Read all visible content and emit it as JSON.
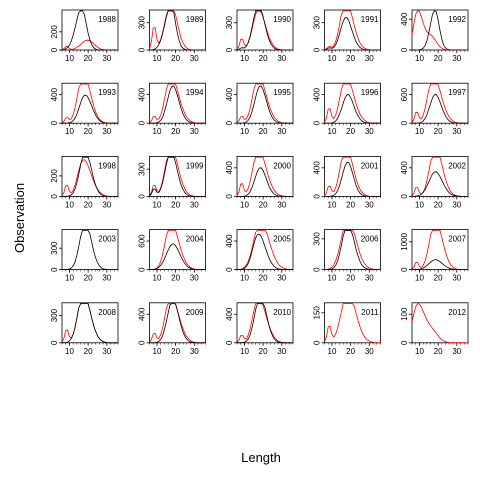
{
  "chart_data": {
    "type": "line",
    "xlabel": "Length",
    "ylabel": "Observation",
    "grid": false,
    "legend": "none",
    "colors": {
      "series_a": "#000000",
      "series_b": "#ff0000"
    },
    "x": [
      6,
      7,
      8,
      9,
      10,
      11,
      12,
      13,
      14,
      15,
      16,
      17,
      18,
      19,
      20,
      21,
      22,
      23,
      24,
      25,
      26,
      27,
      28,
      29,
      30,
      31,
      32,
      33,
      34,
      35,
      36
    ],
    "xticks": [
      10,
      20,
      30
    ],
    "xlim": [
      6,
      36
    ],
    "panels": [
      {
        "year": "1988",
        "ylim": [
          0,
          440
        ],
        "yticks": [
          0,
          200
        ],
        "ytick_labels": [
          "0",
          "200"
        ],
        "shape_a": [
          2,
          -1,
          16,
          0.9,
          5.5,
          18.5,
          4
        ],
        "shape_b": [
          2,
          0.1,
          20,
          0.19,
          6,
          18.5,
          6
        ]
      },
      {
        "year": "1989",
        "ylim": [
          0,
          440
        ],
        "yticks": [
          0,
          300
        ],
        "ytick_labels": [
          "0",
          "300"
        ],
        "shape_a": [
          2,
          -1,
          17,
          0.95,
          5.5,
          19,
          4
        ],
        "shape_b": [
          2,
          0.62,
          17,
          1.0,
          5.5,
          20,
          5
        ]
      },
      {
        "year": "1990",
        "ylim": [
          0,
          440
        ],
        "yticks": [
          0,
          300
        ],
        "ytick_labels": [
          "0",
          "300"
        ],
        "shape_a": [
          2,
          0.05,
          17,
          0.95,
          5,
          20,
          5
        ],
        "shape_b": [
          2,
          0.3,
          17,
          0.82,
          5,
          20,
          6
        ]
      },
      {
        "year": "1991",
        "ylim": [
          0,
          440
        ],
        "yticks": [
          0,
          300
        ],
        "ytick_labels": [
          "0",
          "300"
        ],
        "shape_a": [
          2,
          0.05,
          17,
          0.68,
          5,
          20,
          5
        ],
        "shape_b": [
          2,
          0.08,
          17,
          1.0,
          5,
          20,
          6
        ]
      },
      {
        "year": "1992",
        "ylim": [
          0,
          520
        ],
        "yticks": [
          0,
          400
        ],
        "ytick_labels": [
          "0",
          "400"
        ],
        "shape_a": [
          2,
          -1,
          18,
          0.78,
          4.5,
          19,
          4
        ],
        "shape_b": [
          2,
          -1,
          9,
          1.0,
          4,
          16,
          5
        ]
      },
      {
        "year": "1993",
        "ylim": [
          0,
          560
        ],
        "yticks": [
          0,
          400
        ],
        "ytick_labels": [
          "0",
          "400"
        ],
        "shape_a": [
          2,
          -1,
          18,
          0.55,
          5,
          20,
          6
        ],
        "shape_b": [
          2,
          0.15,
          17,
          1.0,
          5,
          20,
          6
        ]
      },
      {
        "year": "1994",
        "ylim": [
          0,
          560
        ],
        "yticks": [
          0,
          400
        ],
        "ytick_labels": [
          "0",
          "400"
        ],
        "shape_a": [
          2,
          -1,
          18,
          0.78,
          5,
          21,
          5
        ],
        "shape_b": [
          2,
          0.18,
          17,
          1.0,
          5,
          21,
          6
        ]
      },
      {
        "year": "1995",
        "ylim": [
          0,
          560
        ],
        "yticks": [
          0,
          400
        ],
        "ytick_labels": [
          "0",
          "400"
        ],
        "shape_a": [
          2,
          -1,
          18,
          0.78,
          5,
          21,
          5
        ],
        "shape_b": [
          2,
          0.18,
          17,
          1.0,
          5,
          21,
          6
        ]
      },
      {
        "year": "1996",
        "ylim": [
          0,
          560
        ],
        "yticks": [
          0,
          400
        ],
        "ytick_labels": [
          "0",
          "400"
        ],
        "shape_a": [
          2,
          -1,
          18,
          0.6,
          5,
          21,
          5
        ],
        "shape_b": [
          2,
          0.4,
          17,
          1.0,
          5,
          21,
          6
        ]
      },
      {
        "year": "1997",
        "ylim": [
          0,
          840
        ],
        "yticks": [
          0,
          600
        ],
        "ytick_labels": [
          "0",
          "600"
        ],
        "shape_a": [
          2,
          -1,
          18,
          0.6,
          5,
          21,
          5
        ],
        "shape_b": [
          2,
          0.3,
          17,
          1.0,
          5,
          21,
          6
        ]
      },
      {
        "year": "1998",
        "ylim": [
          0,
          390
        ],
        "yticks": [
          0,
          200
        ],
        "ytick_labels": [
          "0",
          "200"
        ],
        "shape_a": [
          2,
          -1,
          18,
          0.95,
          5,
          21,
          5
        ],
        "shape_b": [
          2,
          0.3,
          17,
          0.78,
          5,
          21,
          6
        ]
      },
      {
        "year": "1999",
        "ylim": [
          0,
          440
        ],
        "yticks": [
          0,
          300
        ],
        "ytick_labels": [
          "0",
          "300"
        ],
        "shape_a": [
          2,
          0.2,
          17,
          0.95,
          5,
          20,
          5
        ],
        "shape_b": [
          2,
          0.3,
          17,
          1.0,
          5,
          20,
          6
        ]
      },
      {
        "year": "2000",
        "ylim": [
          0,
          560
        ],
        "yticks": [
          0,
          400
        ],
        "ytick_labels": [
          "0",
          "400"
        ],
        "shape_a": [
          2,
          -1,
          18,
          0.6,
          5,
          21,
          5
        ],
        "shape_b": [
          2,
          0.35,
          17,
          1.0,
          5,
          21,
          6
        ]
      },
      {
        "year": "2001",
        "ylim": [
          0,
          560
        ],
        "yticks": [
          0,
          400
        ],
        "ytick_labels": [
          "0",
          "400"
        ],
        "shape_a": [
          2,
          -1,
          18,
          0.68,
          5,
          20,
          5
        ],
        "shape_b": [
          2,
          0.28,
          17,
          1.0,
          5,
          20,
          6
        ]
      },
      {
        "year": "2002",
        "ylim": [
          0,
          560
        ],
        "yticks": [
          0,
          400
        ],
        "ytick_labels": [
          "0",
          "400"
        ],
        "shape_a": [
          2,
          -1,
          18,
          0.5,
          6,
          21,
          6
        ],
        "shape_b": [
          2,
          0.25,
          18,
          1.0,
          5,
          21,
          6
        ]
      },
      {
        "year": "2003",
        "ylim": [
          0,
          560
        ],
        "yticks": [
          0,
          300
        ],
        "ytick_labels": [
          "0",
          "300"
        ],
        "shape_a": [
          2,
          -1,
          18,
          1.0,
          5,
          21,
          5
        ]
      },
      {
        "year": "2004",
        "ylim": [
          0,
          840
        ],
        "yticks": [
          0,
          600
        ],
        "ytick_labels": [
          "0",
          "600"
        ],
        "shape_a": [
          2,
          -1,
          18,
          0.52,
          6,
          21,
          6
        ],
        "shape_b": [
          2,
          -1,
          17,
          1.0,
          5,
          21,
          6
        ]
      },
      {
        "year": "2005",
        "ylim": [
          0,
          560
        ],
        "yticks": [
          0,
          400
        ],
        "ytick_labels": [
          "0",
          "400"
        ],
        "shape_a": [
          2,
          -1,
          17,
          0.72,
          5,
          20,
          6
        ],
        "shape_b": [
          2,
          -1,
          18,
          1.0,
          6,
          22,
          7
        ]
      },
      {
        "year": "2006",
        "ylim": [
          0,
          390
        ],
        "yticks": [
          0,
          300
        ],
        "ytick_labels": [
          "0",
          "300"
        ],
        "shape_a": [
          2,
          -1,
          18,
          0.9,
          5,
          20,
          6
        ],
        "shape_b": [
          2,
          -1,
          18,
          1.0,
          6,
          21,
          7
        ]
      },
      {
        "year": "2007",
        "ylim": [
          0,
          1440
        ],
        "yticks": [
          0,
          1000
        ],
        "ytick_labels": [
          "0",
          "1000"
        ],
        "shape_a": [
          2,
          -1,
          18,
          0.2,
          6,
          21,
          6
        ],
        "shape_b": [
          2,
          0.2,
          18,
          1.0,
          5,
          21,
          6
        ]
      },
      {
        "year": "2008",
        "ylim": [
          0,
          440
        ],
        "yticks": [
          0,
          300
        ],
        "ytick_labels": [
          "0",
          "300"
        ],
        "shape_a": [
          2,
          -1,
          17,
          1.0,
          5,
          20,
          6
        ],
        "shape_b": [
          2,
          0.35,
          17,
          1.0,
          5,
          20,
          6
        ]
      },
      {
        "year": "2009",
        "ylim": [
          0,
          560
        ],
        "yticks": [
          0,
          400
        ],
        "ytick_labels": [
          "0",
          "400"
        ],
        "shape_a": [
          2,
          -1,
          18,
          0.9,
          5,
          21,
          5
        ],
        "shape_b": [
          2,
          0.25,
          17,
          1.0,
          5,
          21,
          6
        ]
      },
      {
        "year": "2010",
        "ylim": [
          0,
          560
        ],
        "yticks": [
          0,
          400
        ],
        "ytick_labels": [
          "0",
          "400"
        ],
        "shape_a": [
          2,
          -1,
          18,
          1.0,
          5,
          21,
          5
        ],
        "shape_b": [
          2,
          0.2,
          17,
          0.95,
          5,
          21,
          6
        ]
      },
      {
        "year": "2011",
        "ylim": [
          0,
          200
        ],
        "yticks": [
          0,
          150
        ],
        "ytick_labels": [
          "0",
          "150"
        ],
        "shape_b": [
          2,
          0.45,
          18,
          1.0,
          6,
          21,
          7
        ]
      },
      {
        "year": "2012",
        "ylim": [
          0,
          140
        ],
        "yticks": [
          0,
          100
        ],
        "ytick_labels": [
          "0",
          "100"
        ],
        "shape_b": [
          2,
          -1,
          9,
          0.95,
          5,
          16,
          6
        ]
      }
    ]
  }
}
